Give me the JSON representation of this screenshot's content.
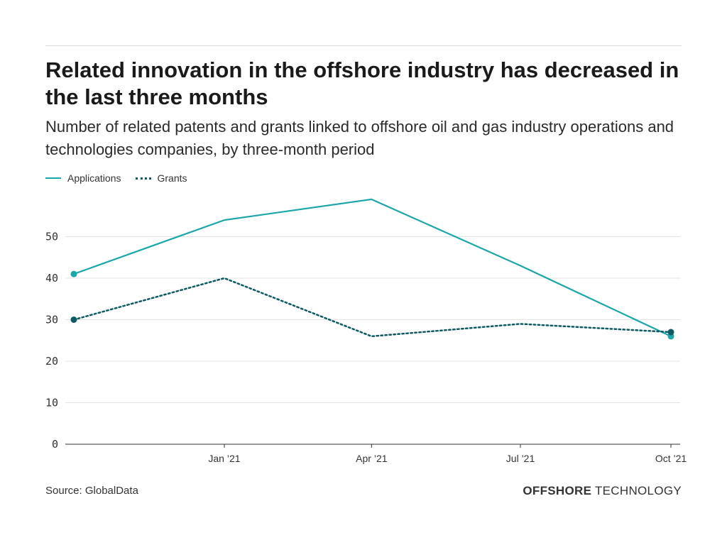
{
  "header": {
    "title": "Related innovation in the offshore industry has decreased in the last three months",
    "subtitle": "Number of related patents and grants linked to offshore oil and gas industry operations and technologies companies, by three-month period"
  },
  "legend": {
    "applications_label": "Applications",
    "grants_label": "Grants"
  },
  "footer": {
    "source": "Source: GlobalData",
    "brand_bold": "OFFSHORE",
    "brand_light": " TECHNOLOGY"
  },
  "colors": {
    "applications": "#1ba6a8",
    "grants": "#0d5a63",
    "grid": "#e3e3e3",
    "axis": "#333333"
  },
  "chart_data": {
    "type": "line",
    "title": "Related innovation in the offshore industry has decreased in the last three months",
    "subtitle": "Number of related patents and grants linked to offshore oil and gas industry operations and technologies companies, by three-month period",
    "xlabel": "",
    "ylabel": "",
    "x": [
      "2020-10-01",
      "2021-01-01",
      "2021-04-01",
      "2021-07-01",
      "2021-10-01"
    ],
    "x_ticks": [
      {
        "date": "2021-01-01",
        "label": "Jan ’21"
      },
      {
        "date": "2021-04-01",
        "label": "Apr ’21"
      },
      {
        "date": "2021-07-01",
        "label": "Jul ’21"
      },
      {
        "date": "2021-10-01",
        "label": "Oct ’21"
      }
    ],
    "ylim": [
      0,
      60
    ],
    "y_ticks": [
      0,
      10,
      20,
      30,
      40,
      50
    ],
    "grid": true,
    "legend_position": "top-left",
    "series": [
      {
        "name": "Applications",
        "style": "solid",
        "values": [
          41,
          54,
          59,
          43,
          26
        ]
      },
      {
        "name": "Grants",
        "style": "dotted",
        "values": [
          30,
          40,
          26,
          29,
          27
        ]
      }
    ]
  }
}
